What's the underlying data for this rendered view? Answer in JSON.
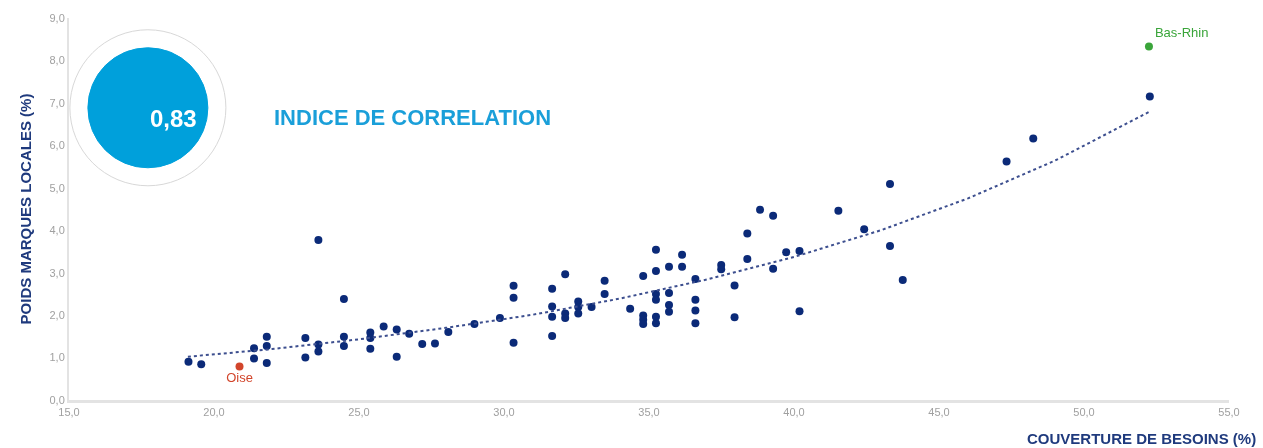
{
  "chart_data": {
    "type": "scatter",
    "xlabel": "COUVERTURE DE BESOINS (%)",
    "ylabel": "POIDS MARQUES LOCALES (%)",
    "annotations": [
      "0,83",
      "INDICE DE CORRELATION"
    ],
    "xlim": [
      15,
      55
    ],
    "ylim": [
      0,
      9
    ],
    "xticks": [
      {
        "value": 15,
        "label": "15,0"
      },
      {
        "value": 20,
        "label": "20,0"
      },
      {
        "value": 25,
        "label": "25,0"
      },
      {
        "value": 30,
        "label": "30,0"
      },
      {
        "value": 35,
        "label": "35,0"
      },
      {
        "value": 40,
        "label": "40,0"
      },
      {
        "value": 45,
        "label": "45,0"
      },
      {
        "value": 50,
        "label": "50,0"
      },
      {
        "value": 55,
        "label": "55,0"
      }
    ],
    "yticks": [
      {
        "value": 0,
        "label": "0,0"
      },
      {
        "value": 1,
        "label": "1,0"
      },
      {
        "value": 2,
        "label": "2,0"
      },
      {
        "value": 3,
        "label": "3,0"
      },
      {
        "value": 4,
        "label": "4,0"
      },
      {
        "value": 5,
        "label": "5,0"
      },
      {
        "value": 6,
        "label": "6,0"
      },
      {
        "value": 7,
        "label": "7,0"
      },
      {
        "value": 8,
        "label": "8,0"
      },
      {
        "value": 9,
        "label": "9,0"
      }
    ],
    "grid": false,
    "legend": false,
    "marker": "circle",
    "series": [
      {
        "color": "#0b2a78",
        "x": [
          19.12,
          19.56,
          21.38,
          21.38,
          21.82,
          21.82,
          21.82,
          23.15,
          23.15,
          23.6,
          23.6,
          23.6,
          24.48,
          24.48,
          24.48,
          25.39,
          25.39,
          25.39,
          25.85,
          26.3,
          26.3,
          26.73,
          27.18,
          27.62,
          28.08,
          28.98,
          29.86,
          30.33,
          30.33,
          30.33,
          31.66,
          31.66,
          31.66,
          31.66,
          32.11,
          32.11,
          32.11,
          32.56,
          32.56,
          32.56,
          33.02,
          33.47,
          33.47,
          34.35,
          34.8,
          34.8,
          34.8,
          34.8,
          35.24,
          35.24,
          35.24,
          35.24,
          35.24,
          35.24,
          35.69,
          35.69,
          35.69,
          35.69,
          36.14,
          36.14,
          36.6,
          36.6,
          36.6,
          36.6,
          37.49,
          37.49,
          37.95,
          37.95,
          38.39,
          38.39,
          38.83,
          39.28,
          39.28,
          39.73,
          40.19,
          40.19,
          41.53,
          42.42,
          43.31,
          43.31,
          43.75,
          47.33,
          48.25,
          52.27
        ],
        "values": [
          0.9,
          0.84,
          1.22,
          0.98,
          1.49,
          1.27,
          0.87,
          1.46,
          1.0,
          3.77,
          1.31,
          1.14,
          2.38,
          1.49,
          1.27,
          1.59,
          1.46,
          1.21,
          1.73,
          1.66,
          1.02,
          1.56,
          1.32,
          1.33,
          1.6,
          1.79,
          1.93,
          2.69,
          2.41,
          1.35,
          2.62,
          2.2,
          1.96,
          1.51,
          2.96,
          2.04,
          1.93,
          2.32,
          2.19,
          2.04,
          2.19,
          2.81,
          2.5,
          2.15,
          2.92,
          1.99,
          1.89,
          1.79,
          3.54,
          3.04,
          2.5,
          2.36,
          1.96,
          1.81,
          3.14,
          2.52,
          2.24,
          2.08,
          3.42,
          3.14,
          2.85,
          2.36,
          2.11,
          1.81,
          3.18,
          3.08,
          2.7,
          1.95,
          3.92,
          3.32,
          4.48,
          4.34,
          3.09,
          3.48,
          3.51,
          2.09,
          4.46,
          4.02,
          5.09,
          3.63,
          2.83,
          5.62,
          6.16,
          7.15
        ]
      },
      {
        "name": "Oise",
        "color": "#d2452b",
        "x": [
          20.88
        ],
        "values": [
          0.79
        ]
      },
      {
        "name": "Bas-Rhin",
        "color": "#3aa53a",
        "x": [
          52.24
        ],
        "values": [
          8.33
        ]
      },
      {
        "type": "line",
        "color": "#3d4f8f",
        "line_style": "dotted",
        "marker": "none",
        "x": [
          19.1,
          22,
          25,
          28,
          31,
          34,
          37,
          40,
          43,
          46,
          49,
          52.28
        ],
        "values": [
          1.02,
          1.2,
          1.43,
          1.7,
          2.01,
          2.39,
          2.84,
          3.37,
          4.0,
          4.75,
          5.64,
          6.8
        ]
      }
    ]
  }
}
